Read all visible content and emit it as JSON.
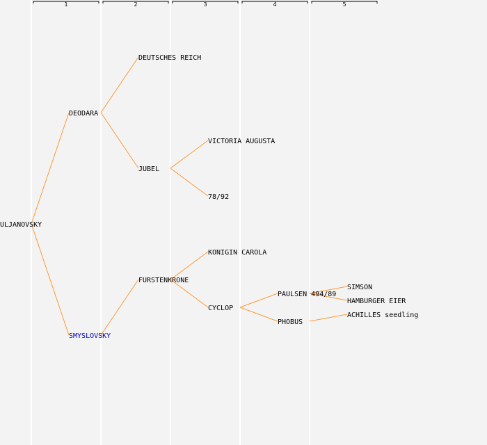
{
  "generations": [
    "1",
    "2",
    "3",
    "4",
    "5"
  ],
  "colors": {
    "background": "#f3f3f3",
    "column_separator": "#ffffff",
    "edge": "#ff9933",
    "header_bracket": "#000000",
    "text": "#000000",
    "highlight_text": "#0000cc"
  },
  "nodes": [
    {
      "id": "uljanovsky",
      "label": "ULJANOVSKY",
      "gen": 1
    },
    {
      "id": "deodara",
      "label": "DEODARA",
      "gen": 2
    },
    {
      "id": "smyslovsky",
      "label": "SMYSLOVSKY",
      "gen": 2,
      "highlight": true
    },
    {
      "id": "deutsches-reich",
      "label": "DEUTSCHES REICH",
      "gen": 3
    },
    {
      "id": "jubel",
      "label": "JUBEL",
      "gen": 3
    },
    {
      "id": "furstenkrone",
      "label": "FURSTENKRONE",
      "gen": 3
    },
    {
      "id": "victoria-augusta",
      "label": "VICTORIA AUGUSTA",
      "gen": 4
    },
    {
      "id": "78-92",
      "label": "78/92",
      "gen": 4
    },
    {
      "id": "konigin-carola",
      "label": "KONIGIN CAROLA",
      "gen": 4
    },
    {
      "id": "cyclop",
      "label": "CYCLOP",
      "gen": 4
    },
    {
      "id": "paulsen-494-89",
      "label": "PAULSEN 494/89",
      "gen": 5
    },
    {
      "id": "phobus",
      "label": "PHOBUS",
      "gen": 5
    },
    {
      "id": "simson",
      "label": "SIMSON",
      "gen": 6
    },
    {
      "id": "hamburger-eier",
      "label": "HAMBURGER EIER",
      "gen": 6
    },
    {
      "id": "achilles-seedling",
      "label": "ACHILLES seedling",
      "gen": 6
    }
  ],
  "edges": [
    [
      "uljanovsky",
      "deodara"
    ],
    [
      "uljanovsky",
      "smyslovsky"
    ],
    [
      "deodara",
      "deutsches-reich"
    ],
    [
      "deodara",
      "jubel"
    ],
    [
      "smyslovsky",
      "furstenkrone"
    ],
    [
      "jubel",
      "victoria-augusta"
    ],
    [
      "jubel",
      "78-92"
    ],
    [
      "furstenkrone",
      "konigin-carola"
    ],
    [
      "furstenkrone",
      "cyclop"
    ],
    [
      "cyclop",
      "paulsen-494-89"
    ],
    [
      "cyclop",
      "phobus"
    ],
    [
      "paulsen-494-89",
      "simson"
    ],
    [
      "paulsen-494-89",
      "hamburger-eier"
    ],
    [
      "phobus",
      "achilles-seedling"
    ]
  ]
}
